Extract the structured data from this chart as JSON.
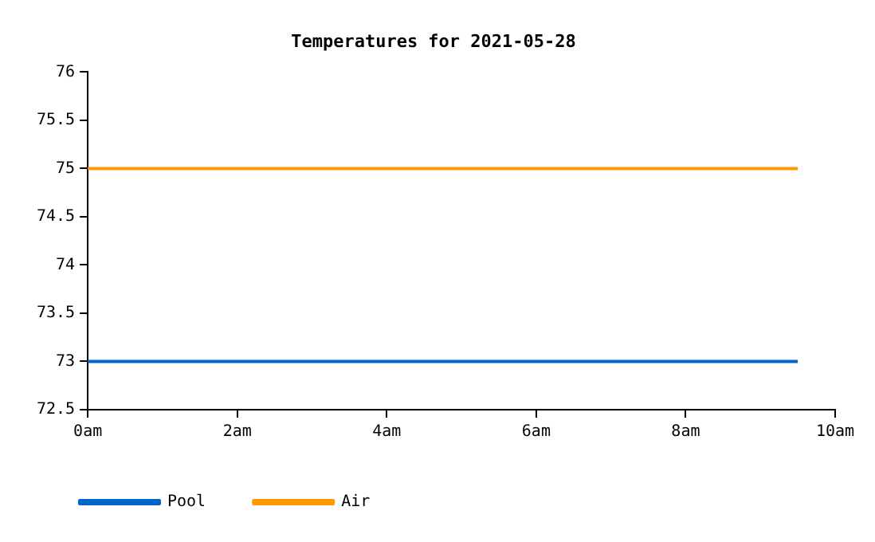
{
  "chart_data": {
    "type": "line",
    "title": "Temperatures for 2021-05-28",
    "x": [
      0,
      9.5
    ],
    "series": [
      {
        "name": "Pool",
        "color": "#0066cc",
        "values": [
          73,
          73
        ]
      },
      {
        "name": "Air",
        "color": "#ff9900",
        "values": [
          75,
          75
        ]
      }
    ],
    "xlim": [
      0,
      10
    ],
    "xticks": [
      {
        "value": 0,
        "label": "0am"
      },
      {
        "value": 2,
        "label": "2am"
      },
      {
        "value": 4,
        "label": "4am"
      },
      {
        "value": 6,
        "label": "6am"
      },
      {
        "value": 8,
        "label": "8am"
      },
      {
        "value": 10,
        "label": "10am"
      }
    ],
    "ylim": [
      72.5,
      76
    ],
    "yticks": [
      72.5,
      73,
      73.5,
      74,
      74.5,
      75,
      75.5,
      76
    ],
    "grid": false,
    "legend": "bottom left",
    "marker": "none",
    "line_style": "solid"
  }
}
